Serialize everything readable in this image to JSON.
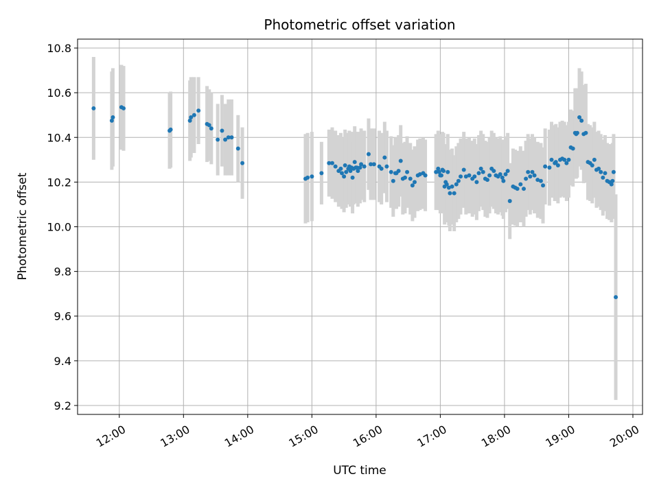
{
  "chart_data": {
    "type": "scatter",
    "title": "Photometric offset variation",
    "xlabel": "UTC time",
    "ylabel": "Photometric offset",
    "xlim": [
      "11:21",
      "20:09"
    ],
    "ylim": [
      9.16,
      10.84
    ],
    "x_ticks": [
      "12:00",
      "13:00",
      "14:00",
      "15:00",
      "16:00",
      "17:00",
      "18:00",
      "19:00",
      "20:00"
    ],
    "y_ticks": [
      "9.2",
      "9.4",
      "9.6",
      "9.8",
      "10.0",
      "10.2",
      "10.4",
      "10.6",
      "10.8"
    ],
    "grid": true,
    "point_color": "#1f77b4",
    "errorbar_color": "#d3d3d3",
    "series": [
      {
        "x": [
          "11:36",
          "11:53",
          "11:54",
          "12:02",
          "12:04",
          "12:47",
          "12:48",
          "13:06",
          "13:07",
          "13:10",
          "13:14",
          "13:22",
          "13:24",
          "13:26",
          "13:32",
          "13:36",
          "13:39",
          "13:42",
          "13:45",
          "13:51",
          "13:55",
          "14:54",
          "14:56",
          "15:00",
          "15:09",
          "15:16",
          "15:19",
          "15:22",
          "15:25",
          "15:27",
          "15:28",
          "15:30",
          "15:31",
          "15:32",
          "15:34",
          "15:35",
          "15:36",
          "15:37",
          "15:38",
          "15:39",
          "15:40",
          "15:41",
          "15:42",
          "15:43",
          "15:45",
          "15:46",
          "15:49",
          "15:53",
          "15:55",
          "15:58",
          "16:03",
          "16:05",
          "16:08",
          "16:10",
          "16:14",
          "16:16",
          "16:18",
          "16:19",
          "16:21",
          "16:23",
          "16:25",
          "16:27",
          "16:29",
          "16:32",
          "16:34",
          "16:36",
          "16:39",
          "16:41",
          "16:44",
          "16:46",
          "16:56",
          "16:58",
          "16:59",
          "17:00",
          "17:01",
          "17:02",
          "17:03",
          "17:04",
          "17:05",
          "17:06",
          "17:07",
          "17:08",
          "17:09",
          "17:11",
          "17:13",
          "17:15",
          "17:17",
          "17:19",
          "17:22",
          "17:24",
          "17:27",
          "17:30",
          "17:32",
          "17:34",
          "17:36",
          "17:38",
          "17:40",
          "17:42",
          "17:44",
          "17:46",
          "17:48",
          "17:50",
          "17:52",
          "17:54",
          "17:56",
          "17:58",
          "17:59",
          "18:01",
          "18:03",
          "18:05",
          "18:08",
          "18:10",
          "18:12",
          "18:15",
          "18:18",
          "18:20",
          "18:22",
          "18:24",
          "18:26",
          "18:28",
          "18:31",
          "18:34",
          "18:36",
          "18:38",
          "18:42",
          "18:44",
          "18:47",
          "18:48",
          "18:50",
          "18:52",
          "18:54",
          "18:56",
          "18:58",
          "19:00",
          "19:02",
          "19:04",
          "19:06",
          "19:07",
          "19:08",
          "19:10",
          "19:12",
          "19:14",
          "19:16",
          "19:18",
          "19:20",
          "19:22",
          "19:24",
          "19:26",
          "19:28",
          "19:30",
          "19:32",
          "19:34",
          "19:36",
          "19:38",
          "19:40",
          "19:41",
          "19:42",
          "19:44"
        ],
        "y": [
          10.53,
          10.475,
          10.49,
          10.535,
          10.53,
          10.43,
          10.435,
          10.475,
          10.49,
          10.5,
          10.52,
          10.46,
          10.455,
          10.44,
          10.39,
          10.43,
          10.39,
          10.4,
          10.4,
          10.35,
          10.285,
          10.215,
          10.22,
          10.225,
          10.24,
          10.285,
          10.285,
          10.27,
          10.25,
          10.26,
          10.24,
          10.225,
          10.275,
          10.245,
          10.26,
          10.27,
          10.25,
          10.265,
          10.22,
          10.26,
          10.29,
          10.265,
          10.265,
          10.25,
          10.265,
          10.28,
          10.27,
          10.325,
          10.28,
          10.28,
          10.27,
          10.26,
          10.31,
          10.27,
          10.245,
          10.205,
          10.24,
          10.24,
          10.25,
          10.295,
          10.215,
          10.22,
          10.245,
          10.215,
          10.185,
          10.2,
          10.23,
          10.235,
          10.24,
          10.23,
          10.245,
          10.26,
          10.245,
          10.23,
          10.23,
          10.255,
          10.25,
          10.18,
          10.2,
          10.19,
          10.245,
          10.175,
          10.15,
          10.18,
          10.15,
          10.19,
          10.205,
          10.225,
          10.255,
          10.225,
          10.23,
          10.215,
          10.225,
          10.2,
          10.24,
          10.26,
          10.245,
          10.215,
          10.21,
          10.23,
          10.26,
          10.25,
          10.23,
          10.225,
          10.235,
          10.22,
          10.205,
          10.235,
          10.25,
          10.115,
          10.18,
          10.175,
          10.17,
          10.19,
          10.17,
          10.215,
          10.245,
          10.225,
          10.245,
          10.23,
          10.21,
          10.205,
          10.185,
          10.27,
          10.265,
          10.3,
          10.285,
          10.29,
          10.275,
          10.3,
          10.305,
          10.3,
          10.285,
          10.3,
          10.355,
          10.35,
          10.42,
          10.415,
          10.42,
          10.49,
          10.475,
          10.415,
          10.42,
          10.29,
          10.285,
          10.275,
          10.3,
          10.255,
          10.26,
          10.245,
          10.22,
          10.24,
          10.205,
          10.2,
          10.19,
          10.205,
          10.245,
          9.685
        ],
        "err": [
          0.23,
          0.22,
          0.22,
          0.19,
          0.19,
          0.17,
          0.17,
          0.18,
          0.18,
          0.17,
          0.15,
          0.17,
          0.16,
          0.16,
          0.16,
          0.16,
          0.16,
          0.17,
          0.17,
          0.15,
          0.16,
          0.2,
          0.2,
          0.2,
          0.14,
          0.15,
          0.16,
          0.16,
          0.16,
          0.16,
          0.16,
          0.16,
          0.16,
          0.16,
          0.16,
          0.16,
          0.16,
          0.16,
          0.16,
          0.16,
          0.16,
          0.16,
          0.16,
          0.16,
          0.16,
          0.16,
          0.16,
          0.16,
          0.16,
          0.16,
          0.16,
          0.16,
          0.16,
          0.16,
          0.16,
          0.16,
          0.16,
          0.16,
          0.16,
          0.16,
          0.16,
          0.16,
          0.16,
          0.16,
          0.16,
          0.16,
          0.16,
          0.16,
          0.16,
          0.16,
          0.17,
          0.17,
          0.17,
          0.17,
          0.17,
          0.17,
          0.17,
          0.17,
          0.17,
          0.17,
          0.17,
          0.17,
          0.17,
          0.17,
          0.17,
          0.17,
          0.17,
          0.17,
          0.17,
          0.17,
          0.17,
          0.17,
          0.17,
          0.17,
          0.17,
          0.17,
          0.17,
          0.17,
          0.17,
          0.17,
          0.17,
          0.17,
          0.17,
          0.17,
          0.17,
          0.17,
          0.17,
          0.17,
          0.17,
          0.17,
          0.17,
          0.17,
          0.17,
          0.17,
          0.17,
          0.17,
          0.17,
          0.17,
          0.17,
          0.17,
          0.17,
          0.17,
          0.17,
          0.17,
          0.17,
          0.17,
          0.17,
          0.17,
          0.17,
          0.17,
          0.17,
          0.17,
          0.17,
          0.17,
          0.17,
          0.17,
          0.2,
          0.2,
          0.2,
          0.22,
          0.22,
          0.22,
          0.22,
          0.17,
          0.17,
          0.17,
          0.17,
          0.17,
          0.17,
          0.17,
          0.17,
          0.17,
          0.17,
          0.17,
          0.17,
          0.17,
          0.17,
          0.46
        ]
      }
    ]
  }
}
